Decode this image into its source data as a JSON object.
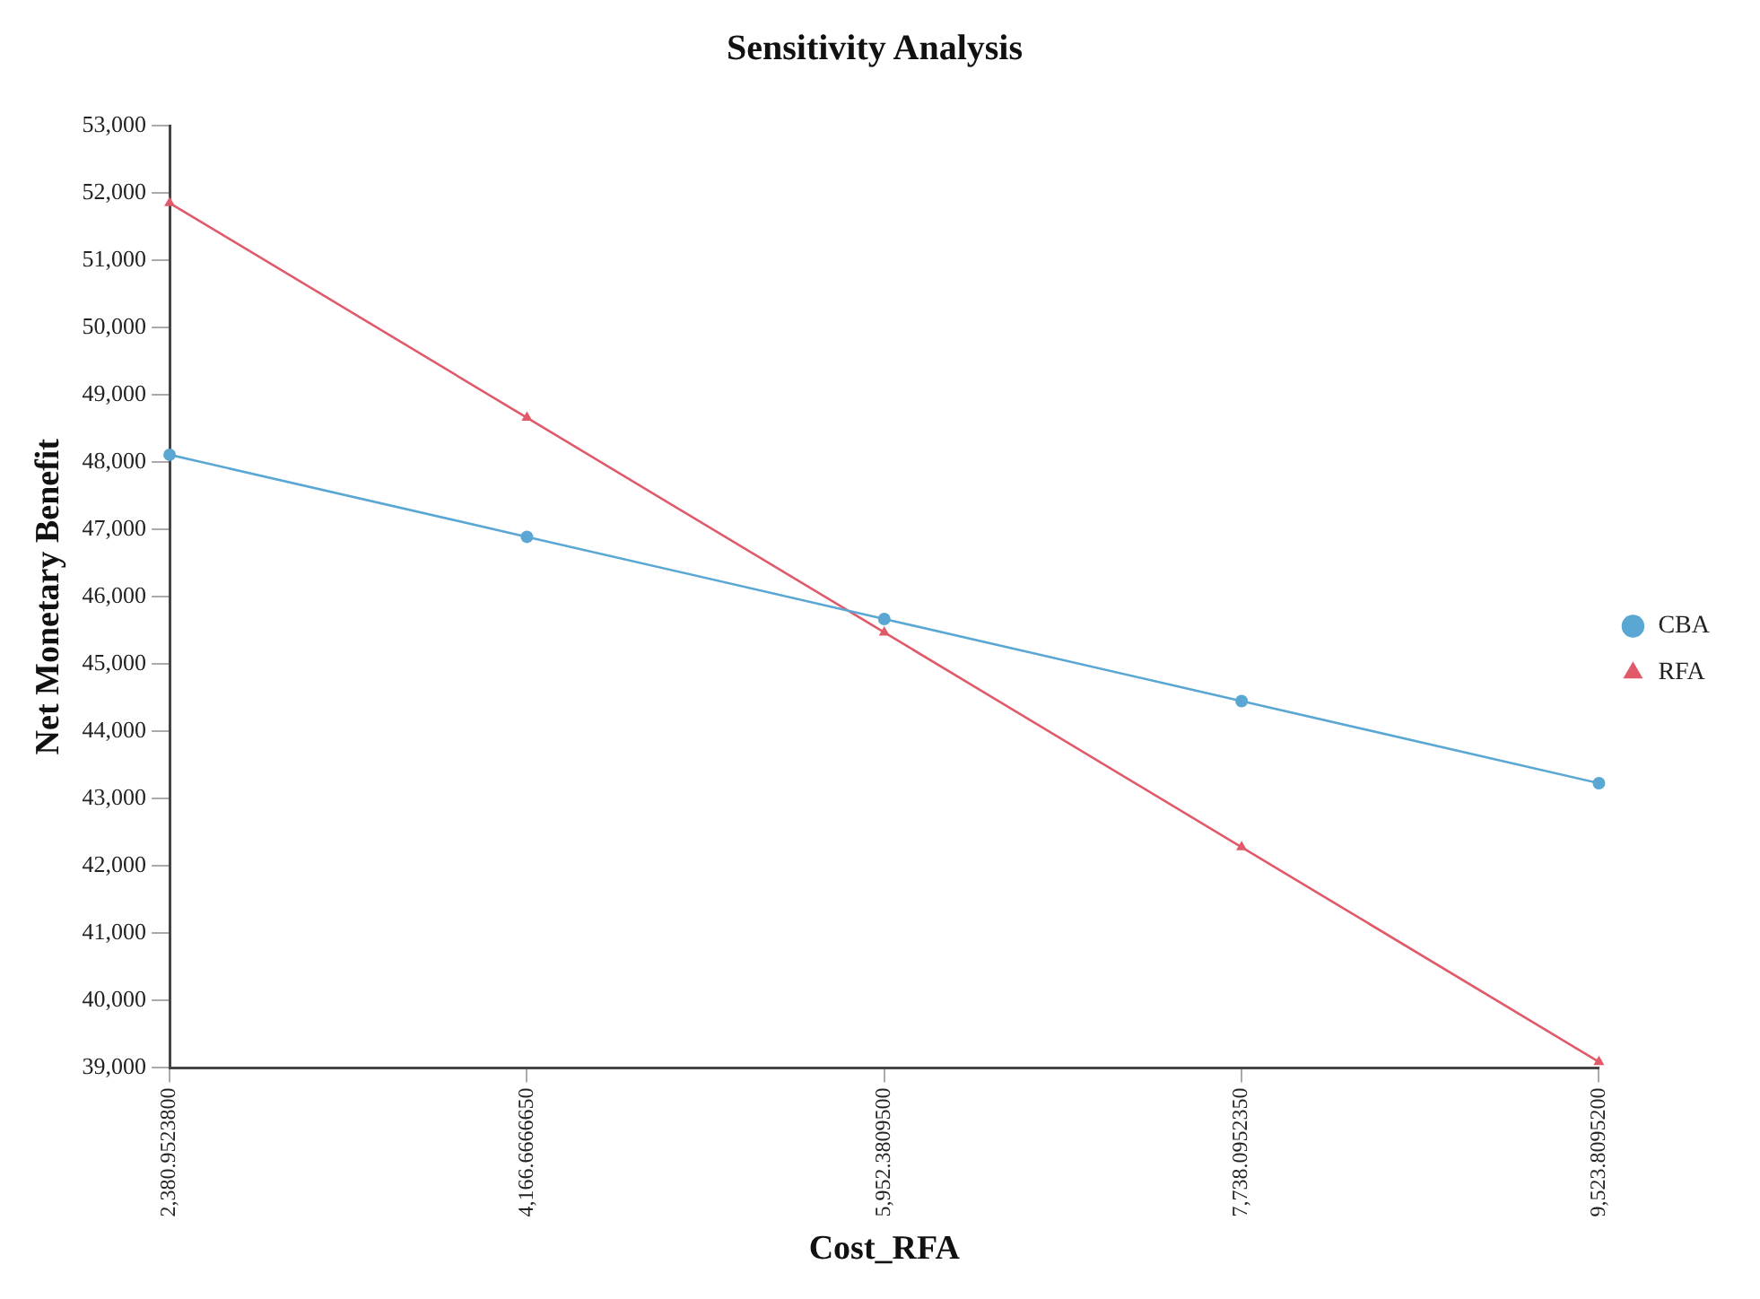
{
  "chart_data": {
    "type": "line",
    "title": "Sensitivity Analysis",
    "xlabel": "Cost_RFA",
    "ylabel": "Net Monetary Benefit",
    "categories": [
      "2,380.9523800",
      "4,166.6666650",
      "5,952.3809500",
      "7,738.0952350",
      "9,523.8095200"
    ],
    "series": [
      {
        "name": "CBA",
        "color": "#5aa7d3",
        "marker": "circle",
        "values": [
          48110,
          46890,
          45670,
          44450,
          43230
        ]
      },
      {
        "name": "RFA",
        "color": "#e05a6a",
        "marker": "triangle",
        "values": [
          51850,
          48660,
          45470,
          42280,
          39090
        ]
      }
    ],
    "ylim": [
      39000,
      53000
    ],
    "yticks": [
      {
        "value": 39000,
        "label": "39,000"
      },
      {
        "value": 40000,
        "label": "40,000"
      },
      {
        "value": 41000,
        "label": "41,000"
      },
      {
        "value": 42000,
        "label": "42,000"
      },
      {
        "value": 43000,
        "label": "43,000"
      },
      {
        "value": 44000,
        "label": "44,000"
      },
      {
        "value": 45000,
        "label": "45,000"
      },
      {
        "value": 46000,
        "label": "46,000"
      },
      {
        "value": 47000,
        "label": "47,000"
      },
      {
        "value": 48000,
        "label": "48,000"
      },
      {
        "value": 49000,
        "label": "49,000"
      },
      {
        "value": 50000,
        "label": "50,000"
      },
      {
        "value": 51000,
        "label": "51,000"
      },
      {
        "value": 52000,
        "label": "52,000"
      },
      {
        "value": 53000,
        "label": "53,000"
      }
    ],
    "grid": false,
    "legend": "right"
  }
}
